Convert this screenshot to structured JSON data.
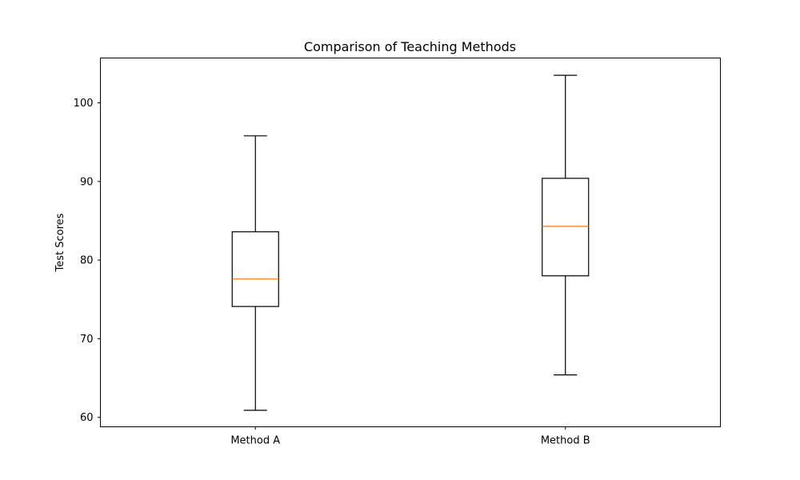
{
  "chart_data": {
    "type": "box",
    "title": "Comparison of Teaching Methods",
    "xlabel": "",
    "ylabel": "Test Scores",
    "ylim": [
      58.8,
      105.7
    ],
    "yticks": [
      60,
      70,
      80,
      90,
      100
    ],
    "ytick_labels": [
      "60",
      "70",
      "80",
      "90",
      "100"
    ],
    "categories": [
      "Method A",
      "Method B"
    ],
    "boxes": [
      {
        "category": "Method A",
        "whisker_low": 60.9,
        "q1": 74.1,
        "median": 77.6,
        "q3": 83.6,
        "whisker_high": 95.8
      },
      {
        "category": "Method B",
        "whisker_low": 65.4,
        "q1": 78.0,
        "median": 84.3,
        "q3": 90.4,
        "whisker_high": 103.5
      }
    ],
    "grid": false,
    "colors": {
      "box": "#000000",
      "median": "#ff7f0e",
      "whisker": "#000000"
    }
  }
}
